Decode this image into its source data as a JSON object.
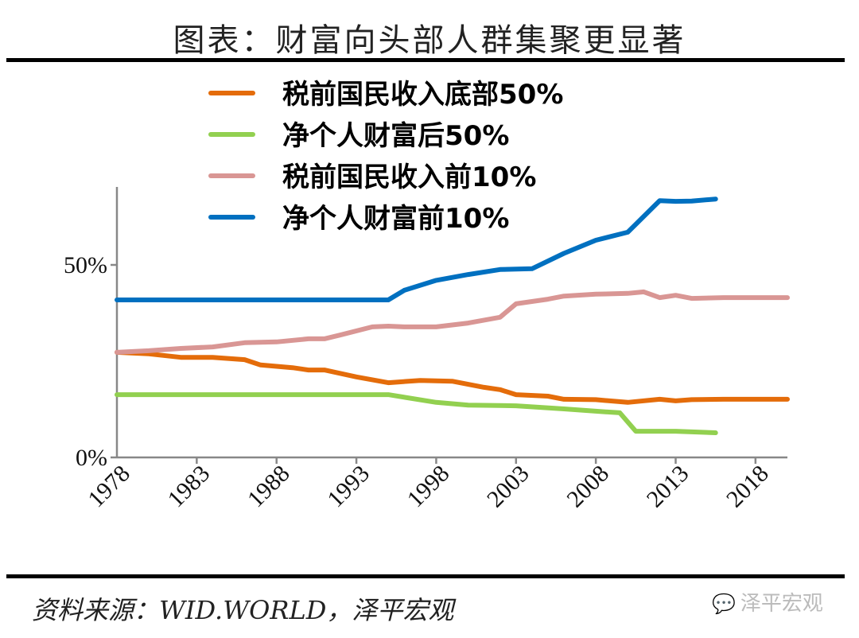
{
  "header": {
    "title": "图表：财富向头部人群集聚更显著"
  },
  "footer": {
    "source": "资料来源：WID.WORLD，泽平宏观",
    "watermark": "泽平宏观",
    "watermark_icon": "wechat-icon"
  },
  "chart_data": {
    "type": "line",
    "title": "",
    "xlabel": "",
    "ylabel": "",
    "xlim": [
      1978,
      2020
    ],
    "ylim": [
      0,
      70
    ],
    "x_ticks": [
      "1978",
      "1983",
      "1988",
      "1993",
      "1998",
      "2003",
      "2008",
      "2013",
      "2018"
    ],
    "y_ticks": [
      {
        "value": 0,
        "label": "0%"
      },
      {
        "value": 50,
        "label": "50%"
      }
    ],
    "grid": false,
    "legend_position": "top-center",
    "series": [
      {
        "name": "税前国民收入底部50%",
        "color": "#E46C0A",
        "x": [
          1978,
          1980,
          1982,
          1984,
          1986,
          1987,
          1989,
          1990,
          1991,
          1993,
          1995,
          1997,
          1999,
          2001,
          2002,
          2003,
          2005,
          2006,
          2008,
          2010,
          2012,
          2013,
          2014,
          2016,
          2020
        ],
        "y": [
          27.3,
          26.9,
          26.0,
          26.0,
          25.4,
          24.0,
          23.3,
          22.7,
          22.7,
          20.9,
          19.4,
          20.0,
          19.8,
          18.2,
          17.6,
          16.3,
          15.9,
          15.1,
          15.0,
          14.3,
          15.1,
          14.7,
          15.0,
          15.1,
          15.1
        ]
      },
      {
        "name": "净个人财富后50%",
        "color": "#92D050",
        "x": [
          1978,
          1995,
          1998,
          2000,
          2003,
          2006,
          2008,
          2009.5,
          2010.5,
          2013,
          2015.5
        ],
        "y": [
          16.3,
          16.3,
          14.3,
          13.6,
          13.4,
          12.6,
          12.0,
          11.6,
          6.8,
          6.8,
          6.4
        ]
      },
      {
        "name": "税前国民收入前10%",
        "color": "#D99694",
        "x": [
          1978,
          1980,
          1982,
          1984,
          1986,
          1988,
          1990,
          1991,
          1992,
          1994,
          1995,
          1996,
          1998,
          2000,
          2002,
          2003,
          2005,
          2006,
          2008,
          2010,
          2011,
          2012,
          2013,
          2014,
          2016,
          2020
        ],
        "y": [
          27.3,
          27.7,
          28.3,
          28.7,
          29.8,
          30.0,
          30.8,
          30.8,
          31.8,
          33.9,
          34.1,
          33.9,
          33.9,
          34.9,
          36.4,
          39.9,
          41.1,
          41.9,
          42.4,
          42.6,
          43.0,
          41.5,
          42.1,
          41.3,
          41.5,
          41.5
        ]
      },
      {
        "name": "净个人财富前10%",
        "color": "#0070C0",
        "x": [
          1978,
          1995,
          1996,
          1998,
          2000,
          2002,
          2004,
          2006,
          2008,
          2010,
          2012,
          2013,
          2014,
          2015.5
        ],
        "y": [
          40.9,
          40.9,
          43.4,
          46.0,
          47.5,
          48.8,
          49.0,
          53.0,
          56.4,
          58.5,
          66.7,
          66.5,
          66.6,
          67.1
        ]
      }
    ]
  }
}
